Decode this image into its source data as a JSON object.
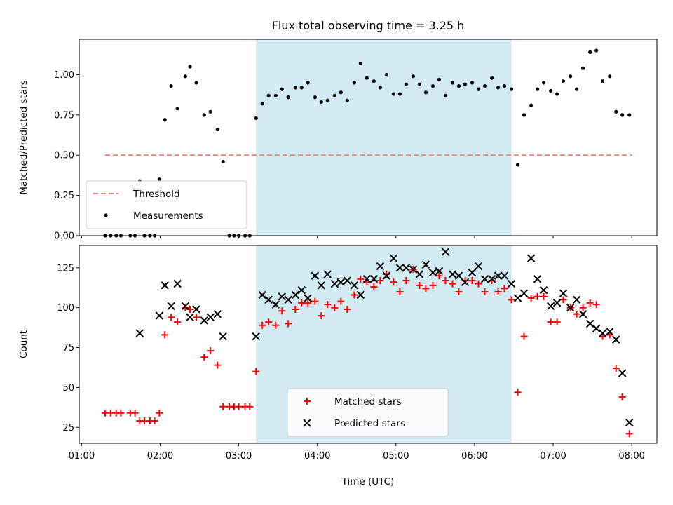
{
  "chart_data": {
    "type": "scatter",
    "title": "Flux total observing time = 3.25 h",
    "xlabel": "Time (UTC)",
    "x_unit": "hours UTC",
    "xlim": [
      0.97,
      8.32
    ],
    "x_tick_values": [
      1,
      2,
      3,
      4,
      5,
      6,
      7,
      8
    ],
    "x_tick_labels": [
      "01:00",
      "02:00",
      "03:00",
      "04:00",
      "05:00",
      "06:00",
      "07:00",
      "08:00"
    ],
    "observing_window": {
      "start": 3.22,
      "end": 6.47,
      "color": "#add8e6"
    },
    "panels": [
      {
        "id": "ratio",
        "ylabel": "Matched/Predicted stars",
        "ylim": [
          0,
          1.22
        ],
        "y_ticks": [
          0.0,
          0.25,
          0.5,
          0.75,
          1.0
        ],
        "y_tick_labels": [
          "0.00",
          "0.25",
          "0.50",
          "0.75",
          "1.00"
        ],
        "legend_position": "lower left",
        "threshold": {
          "name": "Threshold",
          "value": 0.5,
          "x_start": 1.3,
          "x_end": 8.0,
          "color": "#f08080"
        },
        "series": [
          {
            "name": "Measurements",
            "marker": "dot",
            "color": "#000000",
            "points": [
              [
                1.3,
                0.0
              ],
              [
                1.37,
                0.0
              ],
              [
                1.44,
                0.0
              ],
              [
                1.5,
                0.0
              ],
              [
                1.62,
                0.0
              ],
              [
                1.68,
                0.0
              ],
              [
                1.74,
                0.34
              ],
              [
                1.8,
                0.0
              ],
              [
                1.87,
                0.0
              ],
              [
                1.93,
                0.0
              ],
              [
                1.99,
                0.35
              ],
              [
                2.06,
                0.72
              ],
              [
                2.14,
                0.93
              ],
              [
                2.22,
                0.79
              ],
              [
                2.32,
                0.99
              ],
              [
                2.38,
                1.05
              ],
              [
                2.46,
                0.95
              ],
              [
                2.56,
                0.75
              ],
              [
                2.64,
                0.77
              ],
              [
                2.73,
                0.66
              ],
              [
                2.8,
                0.46
              ],
              [
                2.88,
                0.0
              ],
              [
                2.94,
                0.0
              ],
              [
                3.0,
                0.0
              ],
              [
                3.08,
                0.0
              ],
              [
                3.14,
                0.0
              ],
              [
                3.22,
                0.73
              ],
              [
                3.3,
                0.82
              ],
              [
                3.38,
                0.87
              ],
              [
                3.47,
                0.87
              ],
              [
                3.55,
                0.91
              ],
              [
                3.63,
                0.86
              ],
              [
                3.72,
                0.92
              ],
              [
                3.8,
                0.92
              ],
              [
                3.88,
                0.95
              ],
              [
                3.97,
                0.86
              ],
              [
                4.05,
                0.83
              ],
              [
                4.13,
                0.84
              ],
              [
                4.22,
                0.87
              ],
              [
                4.3,
                0.89
              ],
              [
                4.38,
                0.84
              ],
              [
                4.47,
                0.95
              ],
              [
                4.55,
                1.07
              ],
              [
                4.63,
                0.98
              ],
              [
                4.72,
                0.96
              ],
              [
                4.8,
                0.92
              ],
              [
                4.88,
                1.0
              ],
              [
                4.97,
                0.88
              ],
              [
                5.05,
                0.88
              ],
              [
                5.13,
                0.94
              ],
              [
                5.22,
                0.99
              ],
              [
                5.3,
                0.94
              ],
              [
                5.38,
                0.89
              ],
              [
                5.47,
                0.93
              ],
              [
                5.55,
                0.97
              ],
              [
                5.63,
                0.87
              ],
              [
                5.72,
                0.95
              ],
              [
                5.8,
                0.93
              ],
              [
                5.88,
                0.94
              ],
              [
                5.97,
                0.95
              ],
              [
                6.05,
                0.91
              ],
              [
                6.13,
                0.93
              ],
              [
                6.22,
                0.98
              ],
              [
                6.3,
                0.92
              ],
              [
                6.38,
                0.93
              ],
              [
                6.47,
                0.91
              ],
              [
                6.55,
                0.44
              ],
              [
                6.63,
                0.75
              ],
              [
                6.72,
                0.81
              ],
              [
                6.8,
                0.91
              ],
              [
                6.88,
                0.95
              ],
              [
                6.97,
                0.9
              ],
              [
                7.05,
                0.88
              ],
              [
                7.13,
                0.96
              ],
              [
                7.22,
                0.99
              ],
              [
                7.3,
                0.91
              ],
              [
                7.38,
                1.04
              ],
              [
                7.47,
                1.14
              ],
              [
                7.55,
                1.15
              ],
              [
                7.63,
                0.96
              ],
              [
                7.72,
                0.99
              ],
              [
                7.8,
                0.77
              ],
              [
                7.88,
                0.75
              ],
              [
                7.97,
                0.75
              ]
            ]
          }
        ]
      },
      {
        "id": "counts",
        "ylabel": "Count",
        "ylim": [
          15,
          139
        ],
        "y_ticks": [
          25,
          50,
          75,
          100,
          125
        ],
        "y_tick_labels": [
          "25",
          "50",
          "75",
          "100",
          "125"
        ],
        "legend_position": "lower center",
        "series": [
          {
            "name": "Matched stars",
            "marker": "plus",
            "color": "#ff0000",
            "points": [
              [
                1.3,
                34
              ],
              [
                1.37,
                34
              ],
              [
                1.44,
                34
              ],
              [
                1.5,
                34
              ],
              [
                1.62,
                34
              ],
              [
                1.68,
                34
              ],
              [
                1.74,
                29
              ],
              [
                1.8,
                29
              ],
              [
                1.87,
                29
              ],
              [
                1.93,
                29
              ],
              [
                1.99,
                34
              ],
              [
                2.06,
                83
              ],
              [
                2.14,
                94
              ],
              [
                2.22,
                91
              ],
              [
                2.32,
                100
              ],
              [
                2.38,
                99
              ],
              [
                2.46,
                94
              ],
              [
                2.56,
                69
              ],
              [
                2.64,
                73
              ],
              [
                2.73,
                64
              ],
              [
                2.8,
                38
              ],
              [
                2.88,
                38
              ],
              [
                2.94,
                38
              ],
              [
                3.0,
                38
              ],
              [
                3.08,
                38
              ],
              [
                3.14,
                38
              ],
              [
                3.22,
                60
              ],
              [
                3.3,
                89
              ],
              [
                3.38,
                91
              ],
              [
                3.47,
                89
              ],
              [
                3.55,
                98
              ],
              [
                3.63,
                90
              ],
              [
                3.72,
                99
              ],
              [
                3.8,
                103
              ],
              [
                3.88,
                103
              ],
              [
                3.97,
                104
              ],
              [
                4.05,
                95
              ],
              [
                4.13,
                102
              ],
              [
                4.22,
                100
              ],
              [
                4.3,
                104
              ],
              [
                4.38,
                99
              ],
              [
                4.47,
                108
              ],
              [
                4.55,
                118
              ],
              [
                4.63,
                116
              ],
              [
                4.72,
                113
              ],
              [
                4.8,
                117
              ],
              [
                4.88,
                121
              ],
              [
                4.97,
                116
              ],
              [
                5.05,
                110
              ],
              [
                5.13,
                117
              ],
              [
                5.22,
                124
              ],
              [
                5.3,
                114
              ],
              [
                5.38,
                112
              ],
              [
                5.47,
                114
              ],
              [
                5.55,
                120
              ],
              [
                5.63,
                117
              ],
              [
                5.72,
                115
              ],
              [
                5.8,
                110
              ],
              [
                5.88,
                117
              ],
              [
                5.97,
                117
              ],
              [
                6.05,
                115
              ],
              [
                6.13,
                110
              ],
              [
                6.22,
                117
              ],
              [
                6.3,
                110
              ],
              [
                6.38,
                112
              ],
              [
                6.47,
                105
              ],
              [
                6.55,
                47
              ],
              [
                6.63,
                82
              ],
              [
                6.72,
                106
              ],
              [
                6.8,
                107
              ],
              [
                6.88,
                107
              ],
              [
                6.97,
                91
              ],
              [
                7.05,
                91
              ],
              [
                7.13,
                105
              ],
              [
                7.22,
                100
              ],
              [
                7.3,
                96
              ],
              [
                7.38,
                100
              ],
              [
                7.47,
                103
              ],
              [
                7.55,
                102
              ],
              [
                7.63,
                82
              ],
              [
                7.72,
                83
              ],
              [
                7.8,
                62
              ],
              [
                7.88,
                44
              ],
              [
                7.97,
                21
              ]
            ]
          },
          {
            "name": "Predicted stars",
            "marker": "x",
            "color": "#000000",
            "points": [
              [
                1.74,
                84
              ],
              [
                1.99,
                95
              ],
              [
                2.06,
                114
              ],
              [
                2.14,
                101
              ],
              [
                2.22,
                115
              ],
              [
                2.32,
                101
              ],
              [
                2.38,
                94
              ],
              [
                2.46,
                99
              ],
              [
                2.56,
                92
              ],
              [
                2.64,
                94
              ],
              [
                2.73,
                96
              ],
              [
                2.8,
                82
              ],
              [
                3.22,
                82
              ],
              [
                3.3,
                108
              ],
              [
                3.38,
                105
              ],
              [
                3.47,
                102
              ],
              [
                3.55,
                107
              ],
              [
                3.63,
                105
              ],
              [
                3.72,
                108
              ],
              [
                3.8,
                111
              ],
              [
                3.88,
                106
              ],
              [
                3.97,
                120
              ],
              [
                4.05,
                114
              ],
              [
                4.13,
                121
              ],
              [
                4.22,
                115
              ],
              [
                4.3,
                116
              ],
              [
                4.38,
                117
              ],
              [
                4.47,
                114
              ],
              [
                4.55,
                108
              ],
              [
                4.63,
                118
              ],
              [
                4.72,
                118
              ],
              [
                4.8,
                126
              ],
              [
                4.88,
                120
              ],
              [
                4.97,
                131
              ],
              [
                5.05,
                125
              ],
              [
                5.13,
                125
              ],
              [
                5.22,
                124
              ],
              [
                5.3,
                121
              ],
              [
                5.38,
                127
              ],
              [
                5.47,
                122
              ],
              [
                5.55,
                123
              ],
              [
                5.63,
                135
              ],
              [
                5.72,
                121
              ],
              [
                5.8,
                120
              ],
              [
                5.88,
                116
              ],
              [
                5.97,
                122
              ],
              [
                6.05,
                126
              ],
              [
                6.13,
                118
              ],
              [
                6.22,
                118
              ],
              [
                6.3,
                120
              ],
              [
                6.38,
                120
              ],
              [
                6.47,
                115
              ],
              [
                6.55,
                106
              ],
              [
                6.63,
                109
              ],
              [
                6.72,
                131
              ],
              [
                6.8,
                118
              ],
              [
                6.88,
                111
              ],
              [
                6.97,
                101
              ],
              [
                7.05,
                103
              ],
              [
                7.13,
                109
              ],
              [
                7.22,
                100
              ],
              [
                7.3,
                105
              ],
              [
                7.38,
                96
              ],
              [
                7.47,
                90
              ],
              [
                7.55,
                87
              ],
              [
                7.63,
                84
              ],
              [
                7.72,
                85
              ],
              [
                7.8,
                80
              ],
              [
                7.88,
                59
              ],
              [
                7.97,
                28
              ]
            ]
          }
        ]
      }
    ]
  }
}
